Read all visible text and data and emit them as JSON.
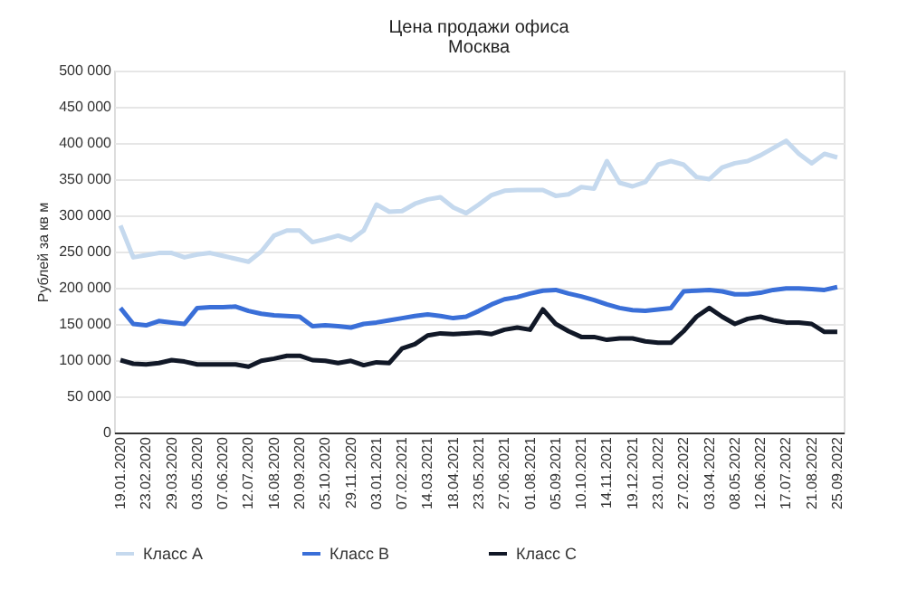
{
  "chart_data": {
    "type": "line",
    "title": "Цена продажи офиса",
    "subtitle": "Москва",
    "ylabel": "Рублей за кв м",
    "categories": [
      "19.01.2020",
      null,
      "23.02.2020",
      null,
      "29.03.2020",
      null,
      "03.05.2020",
      null,
      "07.06.2020",
      null,
      "12.07.2020",
      null,
      "16.08.2020",
      null,
      "20.09.2020",
      null,
      "25.10.2020",
      null,
      "29.11.2020",
      null,
      "03.01.2021",
      null,
      "07.02.2021",
      null,
      "14.03.2021",
      null,
      "18.04.2021",
      null,
      "23.05.2021",
      null,
      "27.06.2021",
      null,
      "01.08.2021",
      null,
      "05.09.2021",
      null,
      "10.10.2021",
      null,
      "14.11.2021",
      null,
      "19.12.2021",
      null,
      "23.01.2022",
      null,
      "27.02.2022",
      null,
      "03.04.2022",
      null,
      "08.05.2022",
      null,
      "12.06.2022",
      null,
      "17.07.2022",
      null,
      "21.08.2022",
      null,
      "25.09.2022"
    ],
    "series": [
      {
        "name": "Класс А",
        "color": "#c5d9ee",
        "values": [
          286000,
          242000,
          245000,
          248000,
          248000,
          242000,
          246000,
          248000,
          244000,
          240000,
          236000,
          250000,
          272000,
          279000,
          279000,
          263000,
          267000,
          272000,
          266000,
          279000,
          315000,
          305000,
          306000,
          316000,
          322000,
          325000,
          311000,
          303000,
          315000,
          328000,
          334000,
          335000,
          335000,
          335000,
          327000,
          329000,
          339000,
          337000,
          375000,
          345000,
          340000,
          346000,
          370000,
          375000,
          370000,
          353000,
          350000,
          366000,
          372000,
          375000,
          383000,
          393000,
          403000,
          385000,
          372000,
          385000,
          380000
        ]
      },
      {
        "name": "Класс В",
        "color": "#3a6fd8",
        "values": [
          172000,
          150000,
          148000,
          154000,
          152000,
          150000,
          172000,
          173000,
          173000,
          174000,
          168000,
          164000,
          162000,
          161000,
          160000,
          147000,
          148000,
          147000,
          145000,
          150000,
          152000,
          155000,
          158000,
          161000,
          163000,
          161000,
          158000,
          160000,
          168000,
          177000,
          184000,
          187000,
          192000,
          196000,
          197000,
          192000,
          188000,
          183000,
          177000,
          172000,
          169000,
          168000,
          170000,
          172000,
          195000,
          196000,
          197000,
          195000,
          191000,
          191000,
          193000,
          197000,
          199000,
          199000,
          198000,
          197000,
          201000
        ]
      },
      {
        "name": "Класс С",
        "color": "#111827",
        "values": [
          100000,
          95000,
          94000,
          96000,
          100000,
          98000,
          94000,
          94000,
          94000,
          94000,
          91000,
          99000,
          102000,
          106000,
          106000,
          100000,
          99000,
          96000,
          99000,
          93000,
          97000,
          96000,
          116000,
          122000,
          134000,
          137000,
          136000,
          137000,
          138000,
          136000,
          142000,
          145000,
          142000,
          170000,
          150000,
          140000,
          132000,
          132000,
          128000,
          130000,
          130000,
          126000,
          124000,
          124000,
          140000,
          160000,
          172000,
          160000,
          150000,
          157000,
          160000,
          155000,
          152000,
          152000,
          150000,
          139000,
          139000
        ]
      }
    ],
    "ylim": [
      0,
      500000
    ],
    "yticks": [
      {
        "value": 0,
        "label": "0"
      },
      {
        "value": 50000,
        "label": "50 000"
      },
      {
        "value": 100000,
        "label": "100 000"
      },
      {
        "value": 150000,
        "label": "150 000"
      },
      {
        "value": 200000,
        "label": "200 000"
      },
      {
        "value": 250000,
        "label": "250 000"
      },
      {
        "value": 300000,
        "label": "300 000"
      },
      {
        "value": 350000,
        "label": "350 000"
      },
      {
        "value": 400000,
        "label": "400 000"
      },
      {
        "value": 450000,
        "label": "450 000"
      },
      {
        "value": 500000,
        "label": "500 000"
      }
    ],
    "grid": "y",
    "legend": "bottom",
    "marker": "none",
    "line_style": "solid"
  }
}
